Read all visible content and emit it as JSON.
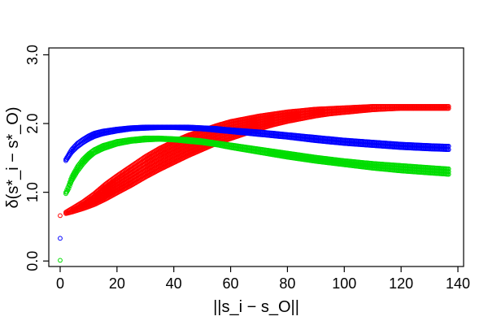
{
  "chart_data": {
    "type": "scatter",
    "title": "",
    "xlabel": "||s_i − s_O||",
    "ylabel": "δ(s*_i − s*_O)",
    "xlim": [
      -4,
      142
    ],
    "ylim": [
      -0.08,
      3.1
    ],
    "x_ticks": [
      0,
      20,
      40,
      60,
      80,
      100,
      120,
      140
    ],
    "y_ticks": [
      0.0,
      1.0,
      2.0,
      3.0
    ],
    "y_tick_labels": [
      "0.0",
      "1.0",
      "2.0",
      "3.0"
    ],
    "grid": false,
    "legend": "none",
    "series": [
      {
        "color": "#ff0000",
        "x": [
          0,
          2,
          4,
          8,
          12,
          16,
          20,
          25,
          30,
          35,
          40,
          45,
          50,
          55,
          60,
          65,
          70,
          75,
          80,
          85,
          90,
          95,
          100,
          105,
          110,
          115,
          120,
          125,
          130,
          135,
          137
        ],
        "upper": [
          0.66,
          0.71,
          0.76,
          0.86,
          0.98,
          1.12,
          1.24,
          1.38,
          1.52,
          1.64,
          1.74,
          1.83,
          1.9,
          1.97,
          2.03,
          2.07,
          2.11,
          2.14,
          2.17,
          2.19,
          2.21,
          2.22,
          2.23,
          2.24,
          2.25,
          2.25,
          2.25,
          2.25,
          2.25,
          2.25,
          2.25
        ],
        "lower": [
          0.66,
          0.69,
          0.71,
          0.76,
          0.82,
          0.9,
          0.99,
          1.1,
          1.22,
          1.33,
          1.43,
          1.53,
          1.62,
          1.71,
          1.78,
          1.85,
          1.92,
          1.98,
          2.03,
          2.07,
          2.11,
          2.14,
          2.16,
          2.18,
          2.2,
          2.21,
          2.22,
          2.22,
          2.22,
          2.22,
          2.22
        ]
      },
      {
        "color": "#0000ff",
        "x": [
          0,
          2,
          3,
          4,
          6,
          8,
          10,
          12,
          15,
          20,
          25,
          30,
          35,
          40,
          45,
          50,
          55,
          60,
          70,
          80,
          90,
          100,
          110,
          120,
          130,
          137
        ],
        "upper": [
          0.33,
          1.48,
          1.55,
          1.62,
          1.71,
          1.77,
          1.82,
          1.86,
          1.89,
          1.92,
          1.94,
          1.95,
          1.95,
          1.95,
          1.95,
          1.94,
          1.93,
          1.91,
          1.88,
          1.84,
          1.8,
          1.76,
          1.73,
          1.7,
          1.68,
          1.67
        ],
        "lower": [
          0.33,
          1.46,
          1.52,
          1.58,
          1.66,
          1.72,
          1.77,
          1.81,
          1.85,
          1.89,
          1.92,
          1.93,
          1.94,
          1.94,
          1.93,
          1.92,
          1.9,
          1.88,
          1.84,
          1.8,
          1.75,
          1.71,
          1.68,
          1.65,
          1.63,
          1.62
        ]
      },
      {
        "color": "#00dd00",
        "x": [
          0,
          2,
          3,
          4,
          6,
          8,
          10,
          12,
          15,
          20,
          25,
          30,
          35,
          40,
          45,
          50,
          55,
          60,
          70,
          80,
          90,
          100,
          110,
          120,
          130,
          137
        ],
        "upper": [
          0.01,
          1.0,
          1.1,
          1.22,
          1.37,
          1.48,
          1.56,
          1.62,
          1.68,
          1.74,
          1.77,
          1.79,
          1.79,
          1.78,
          1.77,
          1.75,
          1.72,
          1.69,
          1.63,
          1.57,
          1.51,
          1.46,
          1.42,
          1.39,
          1.36,
          1.34
        ],
        "lower": [
          0.01,
          0.98,
          1.05,
          1.16,
          1.3,
          1.41,
          1.5,
          1.57,
          1.63,
          1.7,
          1.74,
          1.76,
          1.77,
          1.76,
          1.74,
          1.72,
          1.69,
          1.65,
          1.58,
          1.51,
          1.45,
          1.4,
          1.35,
          1.31,
          1.28,
          1.26
        ]
      }
    ]
  }
}
